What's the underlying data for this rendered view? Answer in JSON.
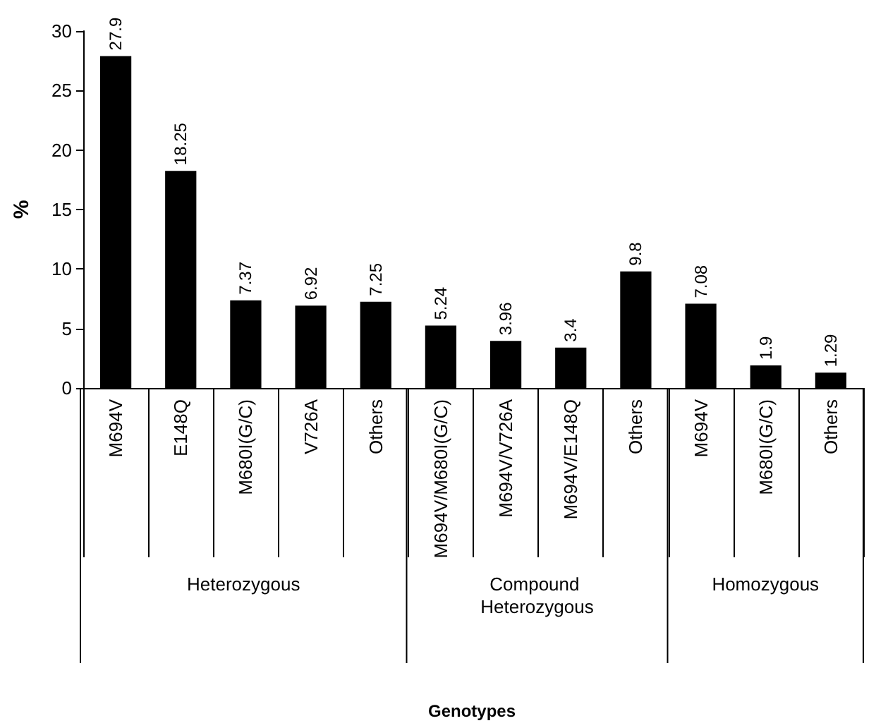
{
  "chart_data": {
    "type": "bar",
    "ylabel": "%",
    "categories": [
      "M694V",
      "E148Q",
      "M680I(G/C)",
      "V726A",
      "Others",
      "M694V/M680I(G/C)",
      "M694V/V726A",
      "M694V/E148Q",
      "Others",
      "M694V",
      "M680I(G/C)",
      "Others"
    ],
    "values": [
      27.9,
      18.25,
      7.37,
      6.92,
      7.25,
      5.24,
      3.96,
      3.4,
      9.8,
      7.08,
      1.9,
      1.29
    ],
    "color": "#000000",
    "ylim": [
      0,
      30
    ],
    "yticks": [
      0,
      5,
      10,
      15,
      20,
      25,
      30
    ],
    "grid": false,
    "data_labels": true,
    "annotations": [
      "Heterozygous",
      "Compound Heterozygous",
      "Homozygous",
      "Genotypes"
    ]
  }
}
